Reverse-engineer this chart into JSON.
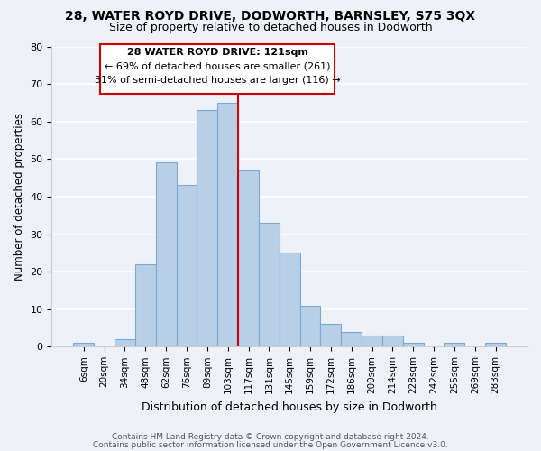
{
  "title": "28, WATER ROYD DRIVE, DODWORTH, BARNSLEY, S75 3QX",
  "subtitle": "Size of property relative to detached houses in Dodworth",
  "xlabel": "Distribution of detached houses by size in Dodworth",
  "ylabel": "Number of detached properties",
  "bar_labels": [
    "6sqm",
    "20sqm",
    "34sqm",
    "48sqm",
    "62sqm",
    "76sqm",
    "89sqm",
    "103sqm",
    "117sqm",
    "131sqm",
    "145sqm",
    "159sqm",
    "172sqm",
    "186sqm",
    "200sqm",
    "214sqm",
    "228sqm",
    "242sqm",
    "255sqm",
    "269sqm",
    "283sqm"
  ],
  "bar_values": [
    1,
    0,
    2,
    22,
    49,
    43,
    63,
    65,
    47,
    33,
    25,
    11,
    6,
    4,
    3,
    3,
    1,
    0,
    1,
    0,
    1
  ],
  "bar_color": "#b8cfe8",
  "bar_edge_color": "#7aaad0",
  "vline_color": "#cc0000",
  "annotation_title": "28 WATER ROYD DRIVE: 121sqm",
  "annotation_line1": "← 69% of detached houses are smaller (261)",
  "annotation_line2": "31% of semi-detached houses are larger (116) →",
  "annotation_box_color": "#ffffff",
  "annotation_box_edge": "#cc0000",
  "ylim": [
    0,
    80
  ],
  "yticks": [
    0,
    10,
    20,
    30,
    40,
    50,
    60,
    70,
    80
  ],
  "footer1": "Contains HM Land Registry data © Crown copyright and database right 2024.",
  "footer2": "Contains public sector information licensed under the Open Government Licence v3.0.",
  "bg_color": "#eef2f8"
}
